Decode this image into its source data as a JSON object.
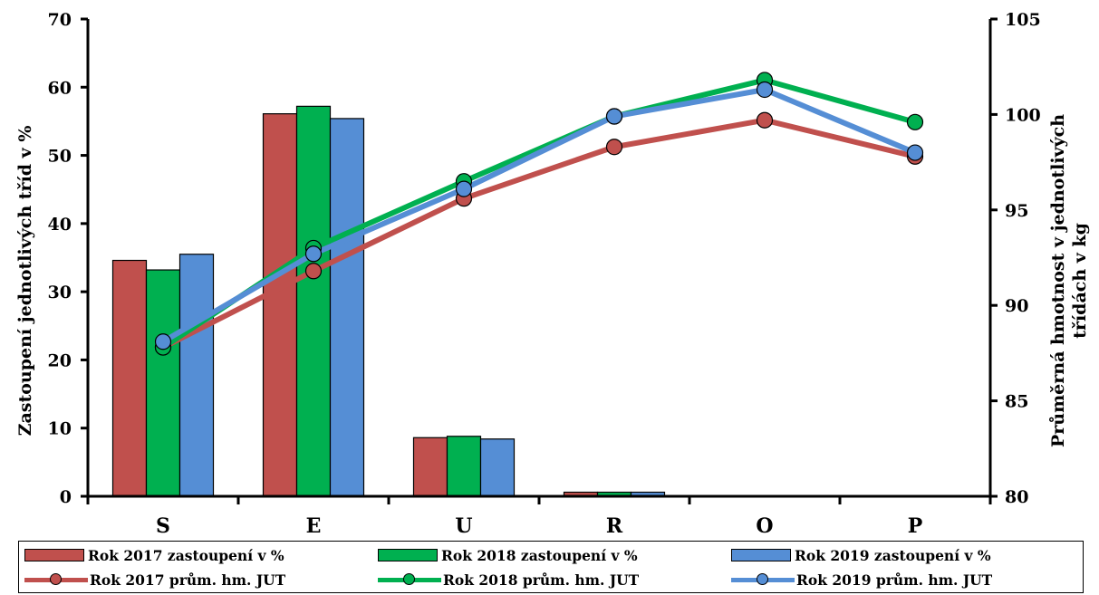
{
  "chart_data": {
    "type": "bar",
    "categories": [
      "S",
      "E",
      "U",
      "R",
      "O",
      "P"
    ],
    "ylabel": "Zastoupení jednotlivých tříd v %",
    "y2label_line1": "Průměrná hmotnost v jednotlivých",
    "y2label_line2": "třídách v kg",
    "ylim": [
      0,
      70
    ],
    "y2lim": [
      80,
      105
    ],
    "yticks": [
      "0",
      "10",
      "20",
      "30",
      "40",
      "50",
      "60",
      "70"
    ],
    "y2ticks": [
      "80",
      "85",
      "90",
      "95",
      "100",
      "105"
    ],
    "grid": false,
    "legend_position": "bottom",
    "bar_series": [
      {
        "name": "Rok 2017 zastoupení v %",
        "color": "#c0504d",
        "values": [
          34.6,
          56.1,
          8.6,
          0.6,
          0,
          0
        ]
      },
      {
        "name": "Rok 2018 zastoupení v %",
        "color": "#00b050",
        "values": [
          33.2,
          57.2,
          8.8,
          0.6,
          0,
          0
        ]
      },
      {
        "name": "Rok 2019 zastoupení v %",
        "color": "#558ed5",
        "values": [
          35.5,
          55.4,
          8.4,
          0.6,
          0,
          0
        ]
      }
    ],
    "line_series": [
      {
        "name": "Rok 2017 prům. hm. JUT",
        "color": "#c0504d",
        "values": [
          87.8,
          91.8,
          95.6,
          98.3,
          99.7,
          97.8
        ]
      },
      {
        "name": "Rok 2018 prům. hm. JUT",
        "color": "#00b050",
        "values": [
          87.8,
          93.0,
          96.5,
          99.9,
          101.8,
          99.6
        ]
      },
      {
        "name": "Rok 2019 prům. hm. JUT",
        "color": "#558ed5",
        "values": [
          88.1,
          92.7,
          96.1,
          99.9,
          101.3,
          98.0
        ]
      }
    ]
  }
}
